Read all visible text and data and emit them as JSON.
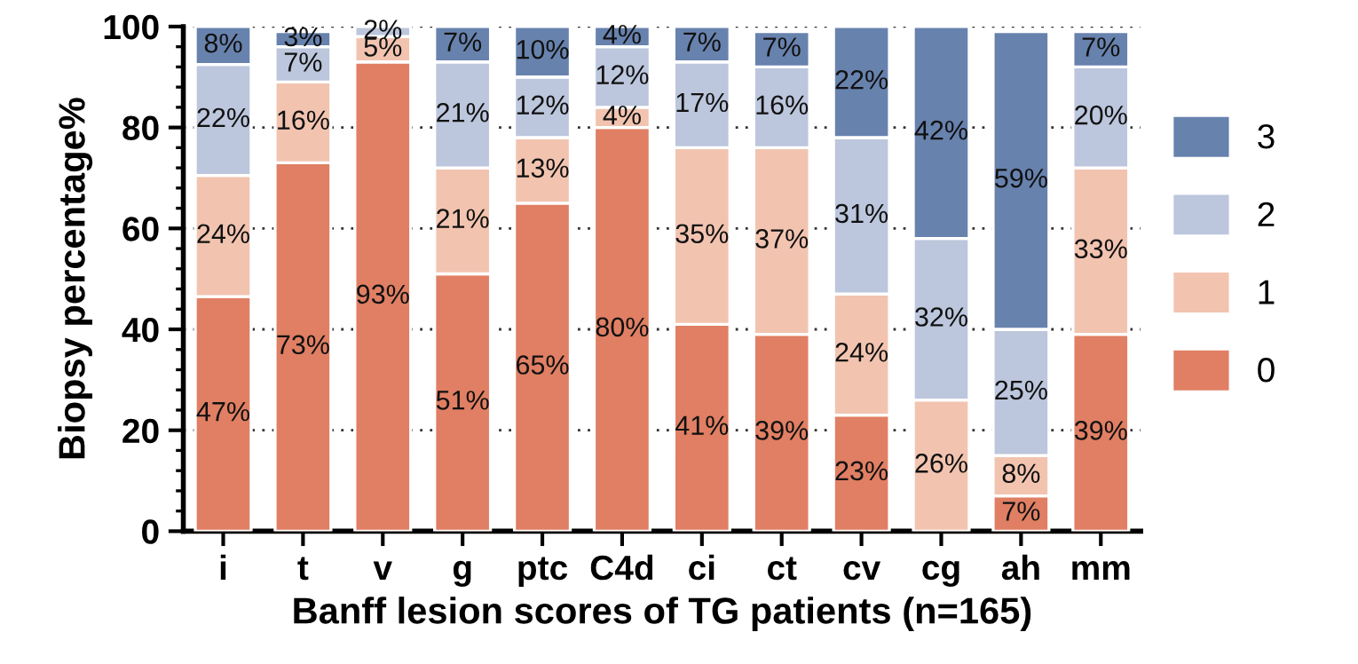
{
  "chart_data": {
    "type": "bar",
    "stacked": true,
    "xlabel": "Banff lesion scores of TG patients (n=165)",
    "ylabel": "Biopsy percentage%",
    "categories": [
      "i",
      "t",
      "v",
      "g",
      "ptc",
      "C4d",
      "ci",
      "ct",
      "cv",
      "cg",
      "ah",
      "mm"
    ],
    "series": [
      {
        "name": "0",
        "color": "#e07f63",
        "values": [
          46.5,
          73,
          93,
          51,
          65,
          80,
          41,
          39,
          23,
          null,
          7,
          39
        ],
        "value_labels": [
          "47%",
          "73%",
          "93%",
          "51%",
          "65%",
          "80%",
          "41%",
          "39%",
          "23%",
          null,
          "7%",
          "39%"
        ]
      },
      {
        "name": "1",
        "color": "#f2c4b0",
        "values": [
          24,
          16,
          5,
          21,
          13,
          4,
          35,
          37,
          24,
          26,
          8,
          33
        ],
        "value_labels": [
          "24%",
          "16%",
          "5%",
          "21%",
          "13%",
          "4%",
          "35%",
          "37%",
          "24%",
          "26%",
          "8%",
          "33%"
        ]
      },
      {
        "name": "2",
        "color": "#bcc6dc",
        "values": [
          22,
          7,
          2,
          21,
          12,
          12,
          17,
          16,
          31,
          32,
          25,
          20
        ],
        "value_labels": [
          "22%",
          "7%",
          "2%",
          "21%",
          "12%",
          "12%",
          "17%",
          "16%",
          "31%",
          "32%",
          "25%",
          "20%"
        ]
      },
      {
        "name": "3",
        "color": "#6882ae",
        "values": [
          7.5,
          3,
          null,
          7,
          10,
          4,
          7,
          7,
          22,
          42,
          59,
          7
        ],
        "value_labels": [
          "8%",
          "3%",
          null,
          "7%",
          "10%",
          "4%",
          "7%",
          "7%",
          "22%",
          "42%",
          "59%",
          "7%"
        ]
      }
    ],
    "ylim": [
      0,
      100
    ],
    "yticks": [
      0,
      {
        "value": 4,
        "label": null
      },
      {
        "value": 8,
        "label": null
      },
      {
        "value": 12,
        "label": null
      },
      {
        "value": 16,
        "label": null
      },
      20,
      {
        "value": 24,
        "label": null
      },
      {
        "value": 28,
        "label": null
      },
      {
        "value": 32,
        "label": null
      },
      {
        "value": 36,
        "label": null
      },
      40,
      {
        "value": 44,
        "label": null
      },
      {
        "value": 48,
        "label": null
      },
      {
        "value": 52,
        "label": null
      },
      {
        "value": 56,
        "label": null
      },
      60,
      {
        "value": 64,
        "label": null
      },
      {
        "value": 68,
        "label": null
      },
      {
        "value": 72,
        "label": null
      },
      {
        "value": 76,
        "label": null
      },
      80,
      {
        "value": 84,
        "label": null
      },
      {
        "value": 88,
        "label": null
      },
      {
        "value": 92,
        "label": null
      },
      {
        "value": 96,
        "label": null
      },
      100
    ],
    "grid": "y",
    "legend": "right"
  }
}
